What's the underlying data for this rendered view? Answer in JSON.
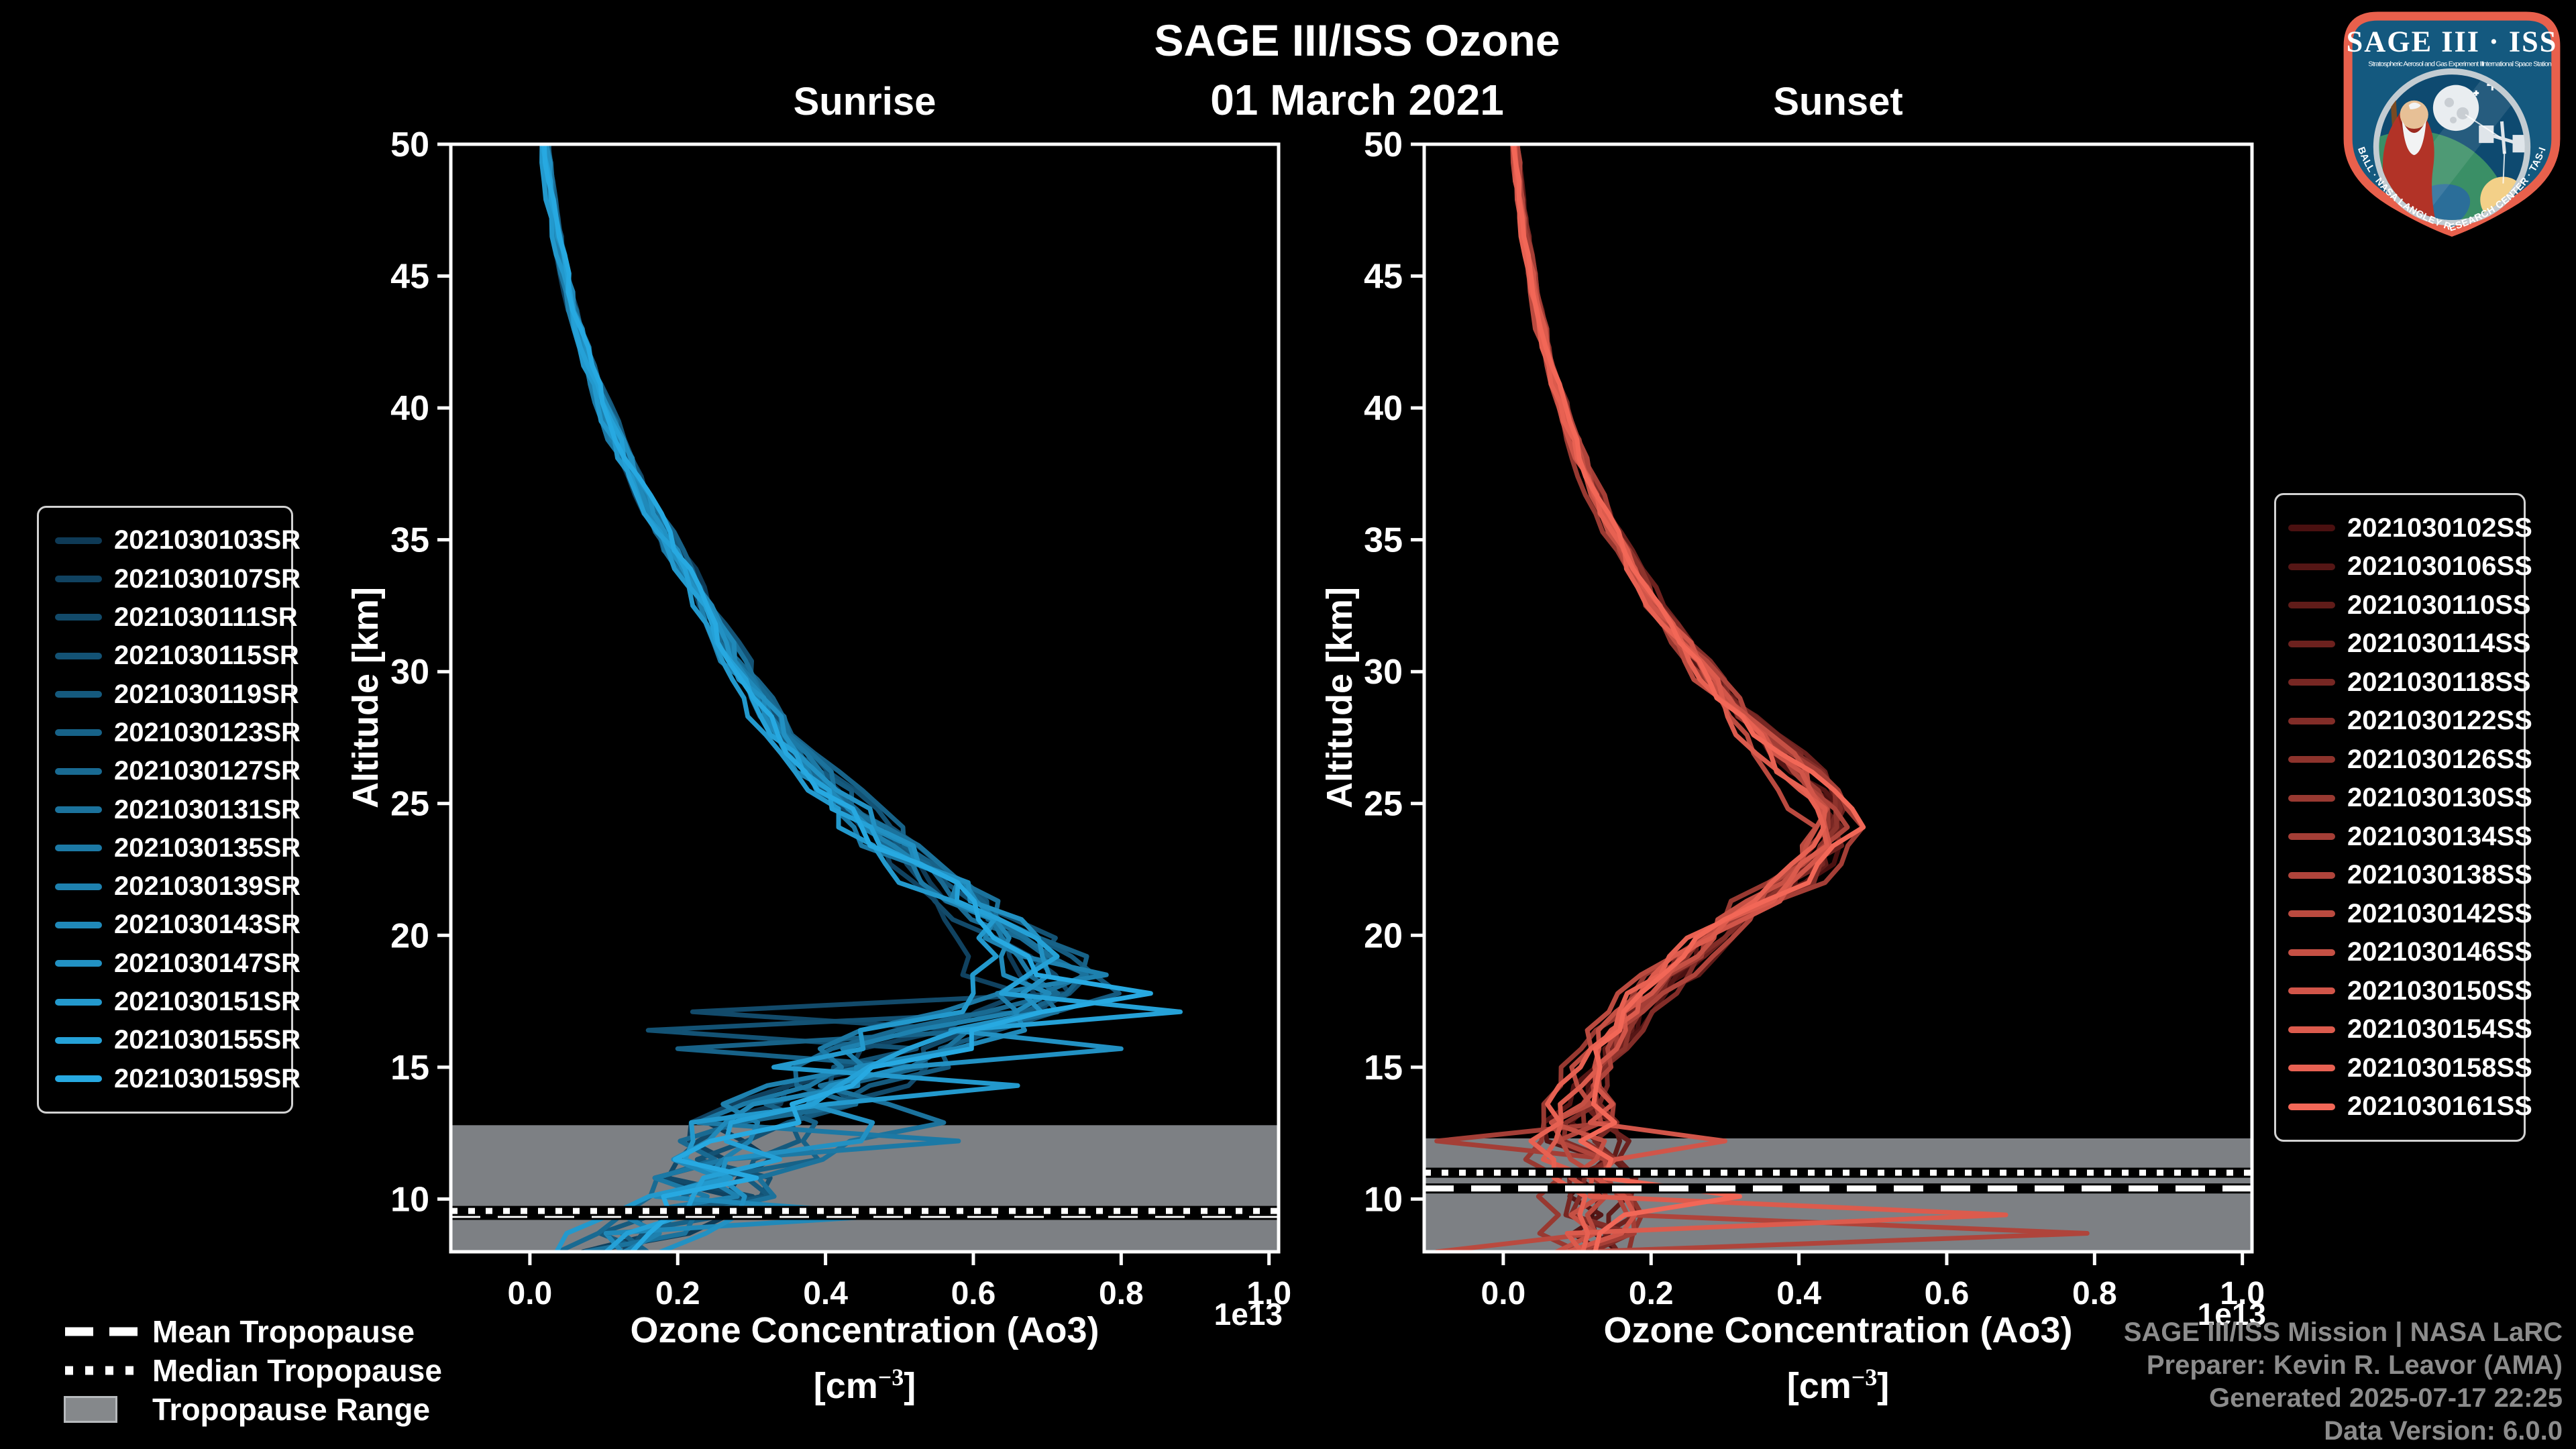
{
  "figure": {
    "title": "SAGE III/ISS Ozone",
    "subtitle": "01 March 2021",
    "background": "#000000"
  },
  "attribution": {
    "lines": [
      "SAGE III/ISS Mission | NASA LaRC",
      "Preparer: Kevin R. Leavor (AMA)",
      "Generated 2025-07-17 22:25",
      "Data Version: 6.0.0"
    ]
  },
  "tropopause_legend": {
    "items": [
      {
        "style": "dashed",
        "label": "Mean Tropopause"
      },
      {
        "style": "dotted",
        "label": "Median Tropopause"
      },
      {
        "style": "range",
        "label": "Tropopause Range"
      }
    ],
    "line_color": "#ffffff",
    "range_fill": "#85888b",
    "range_border": "#b7babd"
  },
  "logo": {
    "title": "SAGE III · ISS",
    "subtitle_left": "Stratospheric Aerosol and Gas Experiment III",
    "subtitle_right": "International Space Station",
    "bottom_text": "BALL · NASA LANGLEY RESEARCH CENTER · TAS-I · ESA",
    "border_color": "#e8604c",
    "field_color": "#14597f",
    "ring_color": "#c3ccd2"
  },
  "chart_data": [
    {
      "type": "line",
      "panel": "sunrise",
      "title": "Sunrise",
      "xlabel": "Ozone Concentration (Ao3)",
      "xlabel_units_prefix": "[cm",
      "xlabel_units_exp": "−3",
      "xlabel_units_suffix": "]",
      "ylabel": "Altitude [km]",
      "offset_text": "1e13",
      "xlim": [
        -0.107,
        1.013
      ],
      "ylim": [
        8,
        50
      ],
      "xticks": [
        0.0,
        0.2,
        0.4,
        0.6,
        0.8,
        1.0
      ],
      "xtick_labels": [
        "0.0",
        "0.2",
        "0.4",
        "0.6",
        "0.8",
        "1.0"
      ],
      "yticks": [
        10,
        15,
        20,
        25,
        30,
        35,
        40,
        45,
        50
      ],
      "grid": false,
      "legend_position": "outside-left",
      "tropopause": {
        "mean_km": 9.4,
        "median_km": 9.55,
        "range_top_km": 12.8,
        "range_bottom_km": 8.0
      },
      "base_profile": [
        [
          50,
          0.02
        ],
        [
          48,
          0.028
        ],
        [
          46,
          0.04
        ],
        [
          44,
          0.055
        ],
        [
          42,
          0.075
        ],
        [
          40,
          0.1
        ],
        [
          38,
          0.13
        ],
        [
          36,
          0.165
        ],
        [
          34,
          0.205
        ],
        [
          32,
          0.25
        ],
        [
          30,
          0.285
        ],
        [
          28,
          0.33
        ],
        [
          26,
          0.39
        ],
        [
          24,
          0.46
        ],
        [
          22,
          0.55
        ],
        [
          21,
          0.6
        ],
        [
          20,
          0.65
        ],
        [
          19,
          0.68
        ],
        [
          18,
          0.7
        ],
        [
          17,
          0.66
        ],
        [
          16,
          0.55
        ],
        [
          15,
          0.46
        ],
        [
          14,
          0.38
        ],
        [
          13,
          0.33
        ],
        [
          12,
          0.3
        ],
        [
          11,
          0.26
        ],
        [
          10,
          0.22
        ],
        [
          9,
          0.16
        ],
        [
          8,
          0.1
        ]
      ],
      "spread_profile": [
        [
          50,
          0.008
        ],
        [
          44,
          0.01
        ],
        [
          40,
          0.012
        ],
        [
          36,
          0.018
        ],
        [
          32,
          0.024
        ],
        [
          30,
          0.028
        ],
        [
          28,
          0.032
        ],
        [
          26,
          0.038
        ],
        [
          24,
          0.05
        ],
        [
          22,
          0.07
        ],
        [
          20,
          0.09
        ],
        [
          19,
          0.11
        ],
        [
          18,
          0.13
        ],
        [
          17,
          0.16
        ],
        [
          16,
          0.18
        ],
        [
          15,
          0.17
        ],
        [
          14,
          0.15
        ],
        [
          13,
          0.13
        ],
        [
          12,
          0.12
        ],
        [
          11,
          0.11
        ],
        [
          10,
          0.1
        ],
        [
          9,
          0.09
        ],
        [
          8,
          0.07
        ]
      ],
      "spikes": [
        {
          "series": 13,
          "alt_km": 16.9,
          "value": 0.88
        },
        {
          "series": 14,
          "alt_km": 17.6,
          "value": 0.84
        },
        {
          "series": 11,
          "alt_km": 15.9,
          "value": 0.8
        },
        {
          "series": 9,
          "alt_km": 18.3,
          "value": 0.78
        },
        {
          "series": 12,
          "alt_km": 14.6,
          "value": 0.66
        },
        {
          "series": 7,
          "alt_km": 13.1,
          "value": 0.56
        },
        {
          "series": 3,
          "alt_km": 16.6,
          "value": 0.16
        },
        {
          "series": 5,
          "alt_km": 15.4,
          "value": 0.2
        },
        {
          "series": 2,
          "alt_km": 17.2,
          "value": 0.22
        },
        {
          "series": 8,
          "alt_km": 12.3,
          "value": 0.58
        },
        {
          "series": 10,
          "alt_km": 9.2,
          "value": 0.5
        }
      ],
      "seed": 20210301,
      "series": [
        {
          "label": "2021030103SR",
          "color": "#0E3A56"
        },
        {
          "label": "2021030107SR",
          "color": "#104260"
        },
        {
          "label": "2021030111SR",
          "color": "#124A6A"
        },
        {
          "label": "2021030115SR",
          "color": "#135274"
        },
        {
          "label": "2021030119SR",
          "color": "#155A7E"
        },
        {
          "label": "2021030123SR",
          "color": "#176288"
        },
        {
          "label": "2021030127SR",
          "color": "#196A92"
        },
        {
          "label": "2021030131SR",
          "color": "#1B729C"
        },
        {
          "label": "2021030135SR",
          "color": "#1C79A5"
        },
        {
          "label": "2021030139SR",
          "color": "#1E81AF"
        },
        {
          "label": "2021030143SR",
          "color": "#2089B9"
        },
        {
          "label": "2021030147SR",
          "color": "#2291C3"
        },
        {
          "label": "2021030151SR",
          "color": "#2399CD"
        },
        {
          "label": "2021030155SR",
          "color": "#25A1D7"
        },
        {
          "label": "2021030159SR",
          "color": "#27A9E1"
        }
      ]
    },
    {
      "type": "line",
      "panel": "sunset",
      "title": "Sunset",
      "xlabel": "Ozone Concentration (Ao3)",
      "xlabel_units_prefix": "[cm",
      "xlabel_units_exp": "−3",
      "xlabel_units_suffix": "]",
      "ylabel": "Altitude [km]",
      "offset_text": "1e13",
      "xlim": [
        -0.107,
        1.013
      ],
      "ylim": [
        8,
        50
      ],
      "xticks": [
        0.0,
        0.2,
        0.4,
        0.6,
        0.8,
        1.0
      ],
      "xtick_labels": [
        "0.0",
        "0.2",
        "0.4",
        "0.6",
        "0.8",
        "1.0"
      ],
      "yticks": [
        10,
        15,
        20,
        25,
        30,
        35,
        40,
        45,
        50
      ],
      "grid": false,
      "legend_position": "outside-right",
      "tropopause": {
        "mean_km": 10.4,
        "median_km": 11.0,
        "range_top_km": 12.3,
        "range_bottom_km": 8.0
      },
      "base_profile": [
        [
          50,
          0.015
        ],
        [
          48,
          0.022
        ],
        [
          46,
          0.032
        ],
        [
          44,
          0.045
        ],
        [
          42,
          0.06
        ],
        [
          40,
          0.08
        ],
        [
          38,
          0.105
        ],
        [
          36,
          0.135
        ],
        [
          34,
          0.17
        ],
        [
          32,
          0.215
        ],
        [
          30,
          0.27
        ],
        [
          28,
          0.33
        ],
        [
          26,
          0.4
        ],
        [
          25,
          0.43
        ],
        [
          24,
          0.44
        ],
        [
          23,
          0.42
        ],
        [
          22,
          0.38
        ],
        [
          21,
          0.33
        ],
        [
          20,
          0.28
        ],
        [
          19,
          0.24
        ],
        [
          18,
          0.2
        ],
        [
          17,
          0.17
        ],
        [
          16,
          0.14
        ],
        [
          15,
          0.12
        ],
        [
          14,
          0.105
        ],
        [
          13,
          0.1
        ],
        [
          12,
          0.1
        ],
        [
          11,
          0.11
        ],
        [
          10,
          0.12
        ],
        [
          9,
          0.12
        ],
        [
          8,
          0.1
        ]
      ],
      "spread_profile": [
        [
          50,
          0.006
        ],
        [
          44,
          0.008
        ],
        [
          40,
          0.01
        ],
        [
          36,
          0.014
        ],
        [
          32,
          0.02
        ],
        [
          30,
          0.026
        ],
        [
          28,
          0.034
        ],
        [
          26,
          0.042
        ],
        [
          24,
          0.05
        ],
        [
          22,
          0.05
        ],
        [
          20,
          0.05
        ],
        [
          18,
          0.042
        ],
        [
          16,
          0.04
        ],
        [
          14,
          0.045
        ],
        [
          13,
          0.06
        ],
        [
          12,
          0.06
        ],
        [
          11,
          0.06
        ],
        [
          10,
          0.06
        ],
        [
          9,
          0.06
        ],
        [
          8,
          0.06
        ]
      ],
      "spikes": [
        {
          "series": 9,
          "alt_km": 8.8,
          "value": 0.79
        },
        {
          "series": 13,
          "alt_km": 9.3,
          "value": 0.68
        },
        {
          "series": 8,
          "alt_km": 11.9,
          "value": -0.09
        },
        {
          "series": 10,
          "alt_km": 8.3,
          "value": -0.09
        },
        {
          "series": 12,
          "alt_km": 12.4,
          "value": 0.3
        },
        {
          "series": 15,
          "alt_km": 9.8,
          "value": 0.32
        }
      ],
      "seed": 20210302,
      "series": [
        {
          "label": "2021030102SS",
          "color": "#4A1010"
        },
        {
          "label": "2021030106SS",
          "color": "#551615"
        },
        {
          "label": "2021030110SS",
          "color": "#601C19"
        },
        {
          "label": "2021030114SS",
          "color": "#6C211E"
        },
        {
          "label": "2021030118SS",
          "color": "#772723"
        },
        {
          "label": "2021030122SS",
          "color": "#822D28"
        },
        {
          "label": "2021030126SS",
          "color": "#8D332C"
        },
        {
          "label": "2021030130SS",
          "color": "#983931"
        },
        {
          "label": "2021030134SS",
          "color": "#A43E36"
        },
        {
          "label": "2021030138SS",
          "color": "#AF443B"
        },
        {
          "label": "2021030142SS",
          "color": "#BA4A3F"
        },
        {
          "label": "2021030146SS",
          "color": "#C55044"
        },
        {
          "label": "2021030150SS",
          "color": "#D15549"
        },
        {
          "label": "2021030154SS",
          "color": "#DC5B4D"
        },
        {
          "label": "2021030158SS",
          "color": "#E76152"
        },
        {
          "label": "2021030161SS",
          "color": "#F26757"
        }
      ]
    }
  ]
}
